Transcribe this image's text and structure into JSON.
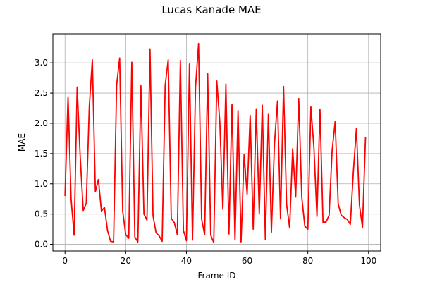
{
  "chart_data": {
    "type": "line",
    "title": "Lucas Kanade MAE",
    "xlabel": "Frame ID",
    "ylabel": "MAE",
    "xlim": [
      -4,
      104
    ],
    "ylim": [
      -0.11,
      3.48
    ],
    "x_ticks": [
      0,
      20,
      40,
      60,
      80,
      100
    ],
    "y_ticks": [
      0.0,
      0.5,
      1.0,
      1.5,
      2.0,
      2.5,
      3.0
    ],
    "x_tick_labels": [
      "0",
      "20",
      "40",
      "60",
      "80",
      "100"
    ],
    "y_tick_labels": [
      "0.0",
      "0.5",
      "1.0",
      "1.5",
      "2.0",
      "2.5",
      "3.0"
    ],
    "grid": true,
    "series": [
      {
        "color": "#ff0000",
        "x": [
          0,
          1,
          2,
          3,
          4,
          5,
          6,
          7,
          8,
          9,
          10,
          11,
          12,
          13,
          14,
          15,
          16,
          17,
          18,
          19,
          20,
          21,
          22,
          23,
          24,
          25,
          26,
          27,
          28,
          29,
          30,
          31,
          32,
          33,
          34,
          35,
          36,
          37,
          38,
          39,
          40,
          41,
          42,
          43,
          44,
          45,
          46,
          47,
          48,
          49,
          50,
          51,
          52,
          53,
          54,
          55,
          56,
          57,
          58,
          59,
          60,
          61,
          62,
          63,
          64,
          65,
          66,
          67,
          68,
          69,
          70,
          71,
          72,
          73,
          74,
          75,
          76,
          77,
          78,
          79,
          80,
          81,
          82,
          83,
          84,
          85,
          86,
          87,
          88,
          89,
          90,
          91,
          92,
          93,
          94,
          95,
          96,
          97,
          98,
          99
        ],
        "y": [
          0.8,
          2.44,
          0.75,
          0.15,
          2.6,
          1.45,
          0.56,
          0.68,
          2.28,
          3.05,
          0.87,
          1.07,
          0.55,
          0.61,
          0.23,
          0.05,
          0.04,
          2.63,
          3.08,
          0.55,
          0.16,
          0.1,
          3.01,
          0.12,
          0.04,
          2.62,
          0.5,
          0.4,
          3.23,
          0.47,
          0.19,
          0.14,
          0.05,
          2.63,
          3.05,
          0.43,
          0.36,
          0.16,
          3.04,
          0.23,
          0.06,
          2.98,
          0.07,
          2.6,
          3.32,
          0.42,
          0.16,
          2.82,
          0.15,
          0.03,
          2.7,
          2.02,
          0.58,
          2.65,
          0.17,
          2.31,
          0.07,
          2.21,
          0.04,
          1.48,
          0.83,
          2.13,
          0.25,
          2.24,
          0.51,
          2.3,
          0.08,
          2.16,
          0.2,
          1.66,
          2.37,
          0.42,
          2.61,
          0.66,
          0.27,
          1.58,
          0.78,
          2.41,
          0.78,
          0.3,
          0.25,
          2.27,
          1.6,
          0.46,
          2.23,
          0.36,
          0.37,
          0.48,
          1.55,
          2.03,
          0.67,
          0.48,
          0.44,
          0.41,
          0.33,
          1.2,
          1.92,
          0.65,
          0.28,
          1.77
        ]
      }
    ]
  }
}
